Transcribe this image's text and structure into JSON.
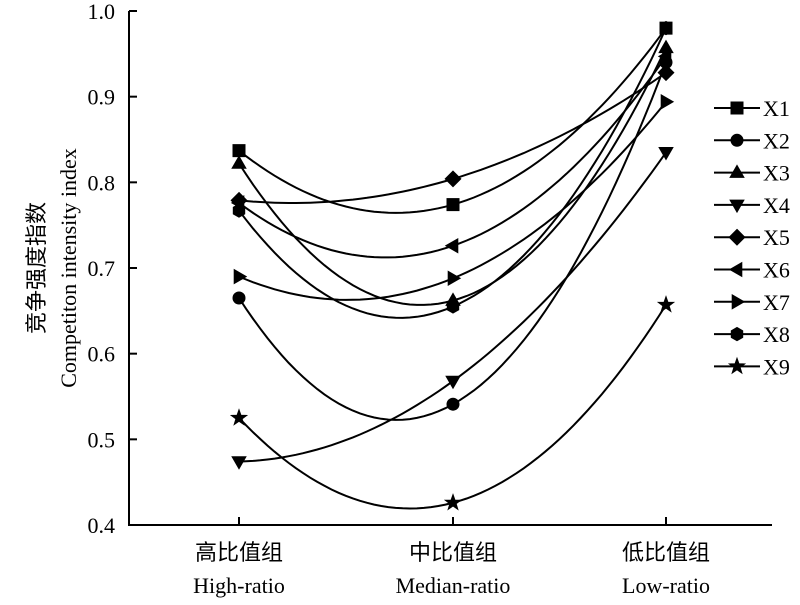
{
  "chart_data": {
    "type": "line",
    "title": "",
    "ylabel_zh": "竞争强度指数",
    "ylabel_en": "Competiton intensity index",
    "ylim": [
      0.4,
      1.0
    ],
    "yticks": [
      "0.4",
      "0.5",
      "0.6",
      "0.7",
      "0.8",
      "0.9",
      "1.0"
    ],
    "categories": [
      {
        "zh": "高比值组",
        "en": "High-ratio"
      },
      {
        "zh": "中比值组",
        "en": "Median-ratio"
      },
      {
        "zh": "低比值组",
        "en": "Low-ratio"
      }
    ],
    "legend_position": "right",
    "series": [
      {
        "name": "X1",
        "marker": "square",
        "values": [
          0.837,
          0.774,
          0.98
        ]
      },
      {
        "name": "X2",
        "marker": "circle",
        "values": [
          0.665,
          0.541,
          0.94
        ]
      },
      {
        "name": "X3",
        "marker": "triangle-up",
        "values": [
          0.822,
          0.662,
          0.957
        ]
      },
      {
        "name": "X4",
        "marker": "triangle-down",
        "values": [
          0.474,
          0.568,
          0.835
        ]
      },
      {
        "name": "X5",
        "marker": "diamond",
        "values": [
          0.779,
          0.804,
          0.928
        ]
      },
      {
        "name": "X6",
        "marker": "triangle-left",
        "values": [
          0.776,
          0.726,
          0.947
        ]
      },
      {
        "name": "X7",
        "marker": "triangle-right",
        "values": [
          0.69,
          0.688,
          0.894
        ]
      },
      {
        "name": "X8",
        "marker": "hexagon",
        "values": [
          0.767,
          0.655,
          0.98
        ]
      },
      {
        "name": "X9",
        "marker": "star",
        "values": [
          0.525,
          0.426,
          0.657
        ]
      }
    ]
  }
}
